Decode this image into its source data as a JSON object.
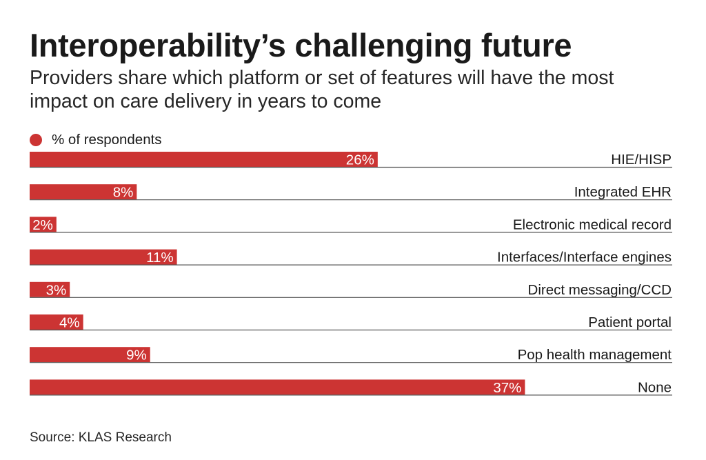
{
  "header": {
    "title": "Interoperability’s challenging future",
    "subtitle": "Providers share which platform or set of features will have the most impact on care delivery in years to come"
  },
  "legend": {
    "label": "% of respondents"
  },
  "colors": {
    "bar": "#cc3433",
    "baseline": "#555555",
    "bar_label": "#ffffff",
    "text": "#1a1a1a"
  },
  "chart_data": {
    "type": "bar",
    "orientation": "horizontal",
    "title": "Interoperability’s challenging future",
    "subtitle": "Providers share which platform or set of features will have the most impact on care delivery in years to come",
    "series": [
      {
        "name": "% of respondents",
        "values": [
          26,
          8,
          2,
          11,
          3,
          4,
          9,
          37
        ]
      }
    ],
    "categories": [
      "HIE/HISP",
      "Integrated EHR",
      "Electronic medical record",
      "Interfaces/Interface engines",
      "Direct messaging/CCD",
      "Patient portal",
      "Pop health management",
      "None"
    ],
    "values": [
      26,
      8,
      2,
      11,
      3,
      4,
      9,
      37
    ],
    "value_labels": [
      "26%",
      "8%",
      "2%",
      "11%",
      "3%",
      "4%",
      "9%",
      "37%"
    ],
    "unit": "%",
    "xlim": [
      0,
      48
    ],
    "legend_position": "top-left",
    "grid": false
  },
  "footer": {
    "source": "Source: KLAS Research"
  }
}
